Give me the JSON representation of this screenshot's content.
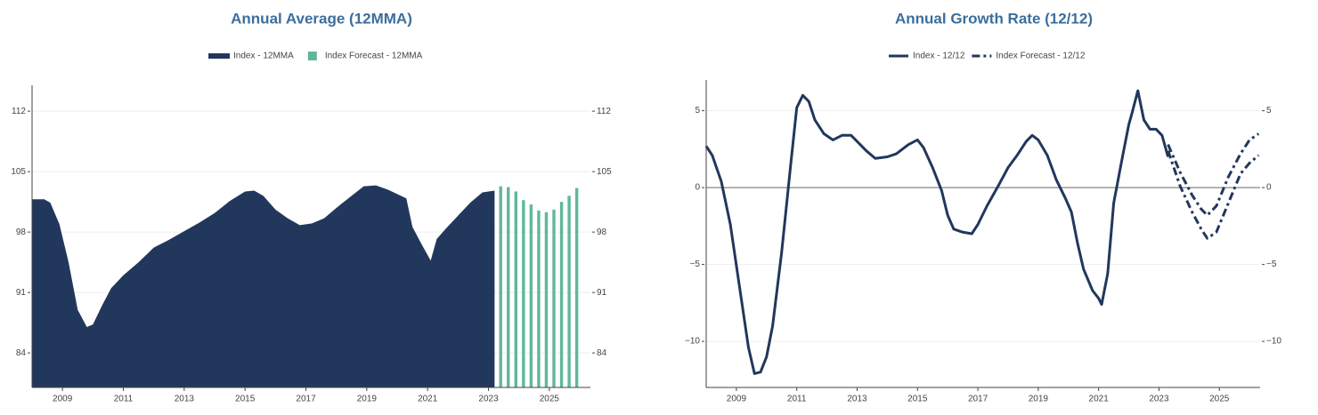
{
  "chart_data": [
    {
      "type": "area",
      "title": "Annual Average (12MMA)",
      "xlim": [
        2008,
        2026.35
      ],
      "xticks": [
        2009,
        2011,
        2013,
        2015,
        2017,
        2019,
        2021,
        2023,
        2025
      ],
      "ylim": [
        80,
        115
      ],
      "yticks": [
        84,
        91,
        98,
        105,
        112
      ],
      "grid": true,
      "mirror_yticks": true,
      "zeroline": false,
      "series": [
        {
          "name": "Index - 12MMA",
          "type": "area",
          "color": "#22375c",
          "x": [
            2008.0,
            2008.4,
            2008.6,
            2008.9,
            2009.2,
            2009.5,
            2009.8,
            2010.0,
            2010.3,
            2010.6,
            2011.0,
            2011.5,
            2012.0,
            2012.5,
            2013.0,
            2013.5,
            2014.0,
            2014.5,
            2015.0,
            2015.3,
            2015.6,
            2016.0,
            2016.4,
            2016.8,
            2017.2,
            2017.6,
            2018.0,
            2018.5,
            2018.9,
            2019.3,
            2019.7,
            2020.0,
            2020.3,
            2020.5,
            2020.8,
            2021.1,
            2021.3,
            2021.6,
            2022.0,
            2022.4,
            2022.8,
            2023.2
          ],
          "values": [
            101.8,
            101.8,
            101.4,
            98.9,
            94.5,
            89,
            87,
            87.3,
            89.5,
            91.5,
            93,
            94.5,
            96.2,
            97.1,
            98.1,
            99.1,
            100.2,
            101.6,
            102.7,
            102.8,
            102.2,
            100.6,
            99.6,
            98.8,
            99,
            99.6,
            100.8,
            102.2,
            103.3,
            103.4,
            102.9,
            102.4,
            101.9,
            98.6,
            96.6,
            94.7,
            97.2,
            98.4,
            99.9,
            101.4,
            102.6,
            102.8
          ]
        },
        {
          "name": "Index Forecast - 12MMA",
          "type": "bar",
          "color": "#5fb89a",
          "x": [
            2023.4,
            2023.65,
            2023.9,
            2024.15,
            2024.4,
            2024.65,
            2024.9,
            2025.15,
            2025.4,
            2025.65,
            2025.9
          ],
          "values": [
            103.3,
            103.2,
            102.7,
            101.7,
            101.2,
            100.5,
            100.3,
            100.6,
            101.5,
            102.2,
            103.1
          ]
        }
      ]
    },
    {
      "type": "line",
      "title": "Annual Growth Rate (12/12)",
      "xlim": [
        2008,
        2026.35
      ],
      "xticks": [
        2009,
        2011,
        2013,
        2015,
        2017,
        2019,
        2021,
        2023,
        2025
      ],
      "ylim": [
        -13,
        7
      ],
      "yticks": [
        {
          "value": -10,
          "label": "−10"
        },
        {
          "value": -5,
          "label": "−5"
        },
        0,
        5
      ],
      "grid": true,
      "mirror_yticks": true,
      "zeroline": true,
      "series": [
        {
          "name": "Index - 12/12",
          "type": "line",
          "dash": "solid",
          "color": "#22375c",
          "x": [
            2008.0,
            2008.2,
            2008.5,
            2008.8,
            2009.1,
            2009.4,
            2009.6,
            2009.8,
            2010.0,
            2010.2,
            2010.5,
            2010.8,
            2011.0,
            2011.2,
            2011.4,
            2011.6,
            2011.9,
            2012.2,
            2012.5,
            2012.8,
            2013.0,
            2013.3,
            2013.6,
            2014.0,
            2014.3,
            2014.7,
            2015.0,
            2015.2,
            2015.5,
            2015.8,
            2016.0,
            2016.2,
            2016.5,
            2016.8,
            2017.0,
            2017.3,
            2017.7,
            2018.0,
            2018.3,
            2018.6,
            2018.8,
            2019.0,
            2019.3,
            2019.6,
            2019.9,
            2020.1,
            2020.3,
            2020.5,
            2020.8,
            2021.0,
            2021.1,
            2021.3,
            2021.5,
            2021.8,
            2022.0,
            2022.1,
            2022.3,
            2022.5,
            2022.7,
            2022.9,
            2023.1,
            2023.3
          ],
          "values": [
            2.7,
            2.1,
            0.4,
            -2.4,
            -6.4,
            -10.4,
            -12.1,
            -12.0,
            -11,
            -9,
            -4.2,
            1.5,
            5.2,
            6.0,
            5.6,
            4.4,
            3.5,
            3.1,
            3.4,
            3.4,
            3.0,
            2.4,
            1.9,
            2.0,
            2.2,
            2.8,
            3.1,
            2.6,
            1.3,
            -0.2,
            -1.8,
            -2.7,
            -2.9,
            -3.0,
            -2.4,
            -1.2,
            0.2,
            1.3,
            2.1,
            3.0,
            3.4,
            3.1,
            2.1,
            0.5,
            -0.7,
            -1.6,
            -3.6,
            -5.3,
            -6.7,
            -7.2,
            -7.6,
            -5.6,
            -1.0,
            2.1,
            4.1,
            4.8,
            6.3,
            4.4,
            3.8,
            3.8,
            3.4,
            2.0
          ]
        },
        {
          "name": "Index Forecast - 12/12",
          "type": "line",
          "dash": "dashdot",
          "color": "#22375c",
          "x": [
            2023.3,
            2023.7,
            2024.1,
            2024.4,
            2024.6,
            2024.9,
            2025.3,
            2025.7,
            2026.0,
            2026.3
          ],
          "values": [
            2.8,
            1.0,
            -0.5,
            -1.4,
            -1.8,
            -1.2,
            0.7,
            2.2,
            3.1,
            3.5
          ]
        },
        {
          "type": "line",
          "dash": "dashdot",
          "color": "#22375c",
          "x": [
            2023.3,
            2023.7,
            2024.1,
            2024.4,
            2024.6,
            2024.9,
            2025.3,
            2025.7,
            2026.0,
            2026.3
          ],
          "values": [
            2.4,
            0.1,
            -1.6,
            -2.7,
            -3.3,
            -2.9,
            -1.0,
            0.9,
            1.6,
            2.1
          ]
        }
      ]
    }
  ]
}
